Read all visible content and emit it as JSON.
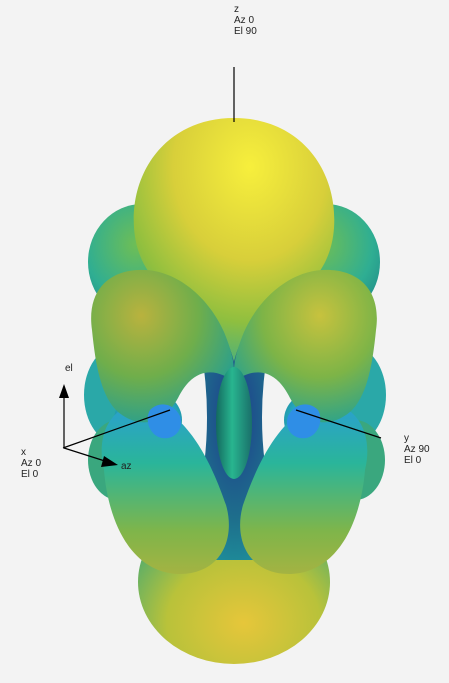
{
  "axes": {
    "z": {
      "name": "z",
      "az": "Az 0",
      "el": "El 90"
    },
    "x": {
      "name": "x",
      "az": "Az 0",
      "el": "El 0"
    },
    "y": {
      "name": "y",
      "az": "Az 90",
      "el": "El 0"
    }
  },
  "triad": {
    "el_label": "el",
    "az_label": "az"
  },
  "colors": {
    "background": "#f3f3f3",
    "peak": "#f2e93a",
    "high": "#d2cf3c",
    "mid": "#44b776",
    "low": "#1fa3b8",
    "null": "#213e8e",
    "axis_line": "#000000"
  }
}
